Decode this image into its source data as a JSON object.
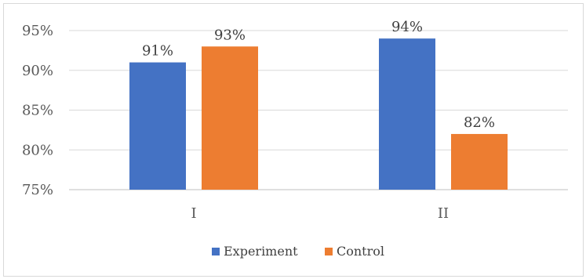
{
  "chart_data": {
    "type": "bar",
    "categories": [
      "I",
      "II"
    ],
    "series": [
      {
        "name": "Experiment",
        "color": "#4472c4",
        "values": [
          91,
          94
        ],
        "labels": [
          "91%",
          "94%"
        ]
      },
      {
        "name": "Control",
        "color": "#ed7d31",
        "values": [
          93,
          82
        ],
        "labels": [
          "93%",
          "82%"
        ]
      }
    ],
    "ylim": [
      75,
      95
    ],
    "yticks": [
      75,
      80,
      85,
      90,
      95
    ],
    "ytick_labels": [
      "75%",
      "80%",
      "85%",
      "90%",
      "95%"
    ],
    "grid": true,
    "legend": "bottom",
    "title": "",
    "xlabel": "",
    "ylabel": ""
  }
}
